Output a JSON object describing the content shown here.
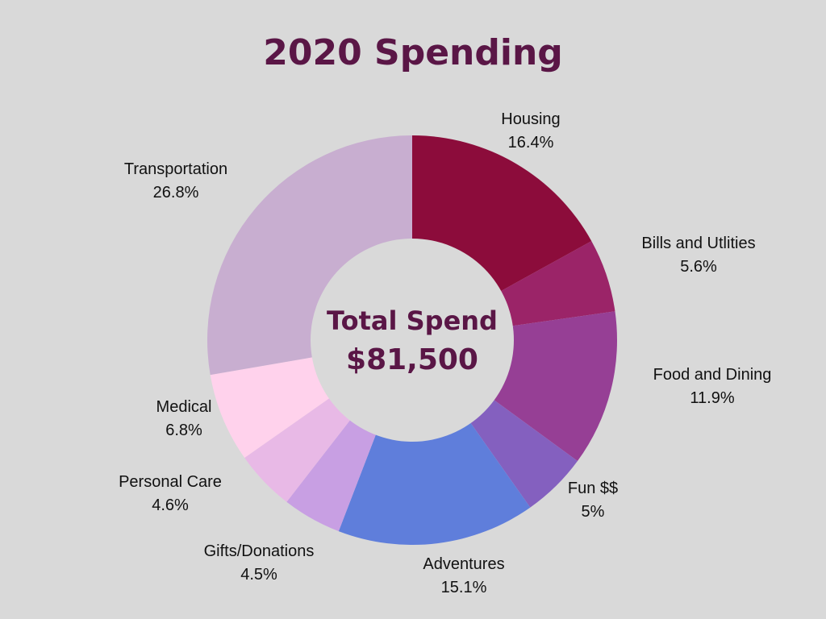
{
  "chart_data": {
    "type": "pie",
    "donut": true,
    "title": "2020 Spending",
    "center_label": "Total Spend",
    "center_value": "$81,500",
    "slices": [
      {
        "label": "Housing",
        "value": 16.4,
        "value_label": "16.4%",
        "color": "#8c0c3b"
      },
      {
        "label": "Bills and Utlities",
        "value": 5.6,
        "value_label": "5.6%",
        "color": "#9b2468"
      },
      {
        "label": "Food and Dining",
        "value": 11.9,
        "value_label": "11.9%",
        "color": "#963f95"
      },
      {
        "label": "Fun $$",
        "value": 5,
        "value_label": "5%",
        "color": "#8460bf"
      },
      {
        "label": "Adventures",
        "value": 15.1,
        "value_label": "15.1%",
        "color": "#5f7edb"
      },
      {
        "label": "Gifts/Donations",
        "value": 4.5,
        "value_label": "4.5%",
        "color": "#9e8de0"
      },
      {
        "label": "Personal Care",
        "value": 4.6,
        "value_label": "4.6%",
        "color": "#c89fe3"
      },
      {
        "label": "Medical",
        "value": 6.8,
        "value_label": "6.8%",
        "color": "#e8b9e6"
      },
      {
        "label": "Transportation",
        "value": 26.8,
        "value_label": "26.8%",
        "color": "#ffd2ec"
      }
    ],
    "extra_color_note": "#c8aed0"
  }
}
